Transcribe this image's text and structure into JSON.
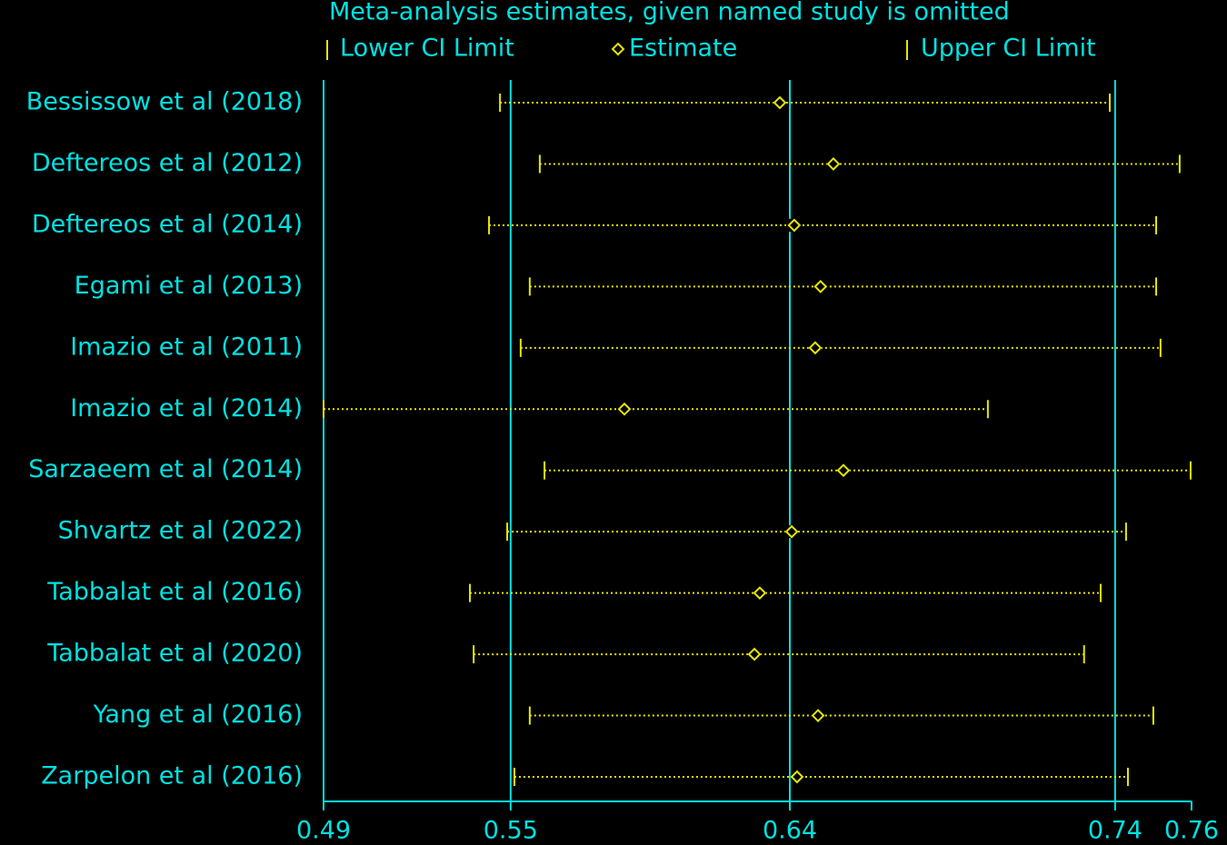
{
  "chart_data": {
    "type": "ci-plot",
    "title": "Meta-analysis estimates, given named study is omitted",
    "categories": [
      "Bessissow et al  (2018)",
      "Deftereos et al  (2012)",
      "Deftereos et al  (2014)",
      "Egami et al  (2013)",
      "Imazio et al  (2011)",
      "Imazio et al  (2014)",
      "Sarzaeem et al  (2014)",
      "Shvartz et al (2022)",
      "Tabbalat et al  (2016)",
      "Tabbalat et al  (2020)",
      "Yang et al (2016)",
      "Zarpelon et al (2016)"
    ],
    "series": [
      {
        "name": "Lower CI Limit",
        "color": "#e6e600",
        "values": [
          0.5433,
          0.556,
          0.5398,
          0.5528,
          0.5499,
          0.487,
          0.5575,
          0.5456,
          0.5337,
          0.5349,
          0.5528,
          0.5479
        ]
      },
      {
        "name": "Estimate",
        "color": "#e6e600",
        "values": [
          0.6326,
          0.6497,
          0.6372,
          0.6456,
          0.6439,
          0.583,
          0.6529,
          0.6364,
          0.6262,
          0.6245,
          0.6448,
          0.6381
        ]
      },
      {
        "name": "Upper CI Limit",
        "color": "#e6e600",
        "values": [
          0.7379,
          0.7602,
          0.7527,
          0.7527,
          0.7541,
          0.699,
          0.7637,
          0.7431,
          0.735,
          0.7297,
          0.7518,
          0.7437
        ]
      }
    ],
    "xlim": [
      0.487,
      0.764
    ],
    "xticks": [
      {
        "value": 0.487,
        "label": "0.49"
      },
      {
        "value": 0.5467,
        "label": "0.55"
      },
      {
        "value": 0.6358,
        "label": "0.64"
      },
      {
        "value": 0.7396,
        "label": "0.74"
      },
      {
        "value": 0.764,
        "label": "0.76"
      }
    ],
    "grid": true,
    "legend": "top",
    "axis_color": "#00e1e1"
  }
}
